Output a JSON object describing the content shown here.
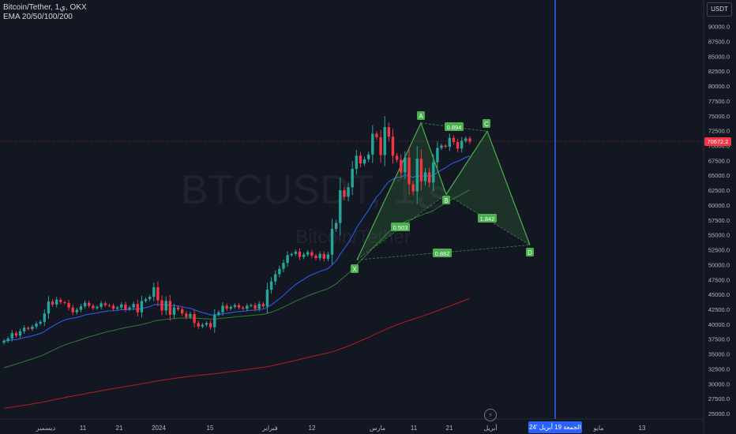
{
  "header": {
    "symbol_line": "Bitcoin/Tether, 1ي, OKX",
    "indicator_line": "EMA 20/50/100/200"
  },
  "currency_button": "USDT",
  "watermark": {
    "ticker": "BTCUSDT, 1ي",
    "name": "Bitcoin/Tether"
  },
  "last_price_label": "70672.2",
  "cursor_date_label": "الجمعة 19 أبريل '24",
  "colors": {
    "background": "#131722",
    "up": "#26a69a",
    "down": "#f23645",
    "ema20": "#2962ff",
    "ema50": "#2e7d32",
    "ema200": "#b71c1c",
    "pattern": "#4caf50",
    "crosshair": "#2962ff"
  },
  "chart_data": {
    "type": "candlestick",
    "ylim": [
      24000,
      93000
    ],
    "y_ticks": [
      25000,
      27500,
      30000,
      32500,
      35000,
      37500,
      40000,
      42500,
      45000,
      47500,
      50000,
      52500,
      55000,
      57500,
      60000,
      62500,
      65000,
      67500,
      70000,
      72500,
      75000,
      77500,
      80000,
      82500,
      85000,
      87500,
      90000
    ],
    "y_tick_labels": [
      "25000.0",
      "27500.0",
      "30000.0",
      "32500.0",
      "35000.0",
      "37500.0",
      "40000.0",
      "42500.0",
      "45000.0",
      "47500.0",
      "50000.0",
      "52500.0",
      "55000.0",
      "57500.0",
      "60000.0",
      "62500.0",
      "65000.0",
      "67500.0",
      "70000.0",
      "72500.0",
      "75000.0",
      "77500.0",
      "80000.0",
      "82500.0",
      "85000.0",
      "87500.0",
      "90000.0"
    ],
    "x_labels": [
      "ديسمبر",
      "11",
      "21",
      "2024",
      "15",
      "فبراير",
      "12",
      "مارس",
      "11",
      "21",
      "أبريل",
      "مايو",
      "13"
    ],
    "last_price": 70672.2,
    "series_close": [
      37200,
      37600,
      38500,
      38100,
      38800,
      39400,
      39200,
      39600,
      40100,
      40400,
      41800,
      43800,
      43300,
      44100,
      43700,
      43600,
      42800,
      42000,
      42400,
      43000,
      43600,
      43100,
      42700,
      42900,
      43500,
      43200,
      43100,
      42600,
      42800,
      43300,
      42500,
      42800,
      43400,
      42000,
      43900,
      44200,
      44600,
      46200,
      44000,
      42300,
      43900,
      41600,
      42800,
      42500,
      41800,
      41200,
      41700,
      40200,
      39600,
      39900,
      40200,
      39500,
      41600,
      42000,
      43100,
      42600,
      42900,
      43200,
      42800,
      42600,
      43100,
      43200,
      42600,
      43400,
      43000,
      45800,
      47200,
      48400,
      49300,
      50300,
      51600,
      51800,
      52200,
      51300,
      51700,
      52100,
      51500,
      51100,
      51800,
      51000,
      51700,
      56000,
      57000,
      62500,
      61400,
      63000,
      66100,
      68300,
      67000,
      67700,
      68500,
      72000,
      71400,
      68400,
      73100,
      71500,
      68300,
      67600,
      65500,
      68000,
      63500,
      62300,
      67800,
      64000,
      65500,
      63800,
      67200,
      69600,
      70000,
      69800,
      71300,
      70600,
      69500,
      70800,
      71200,
      70672
    ]
  },
  "harmonic_pattern": {
    "points": {
      "X": 50800,
      "A": 73800,
      "B": 61800,
      "C": 72400,
      "D": 53300
    },
    "ratios": {
      "AB": "0.503",
      "XAXD_low": "0.882",
      "AC": "0.894",
      "BD": "1.842"
    }
  }
}
